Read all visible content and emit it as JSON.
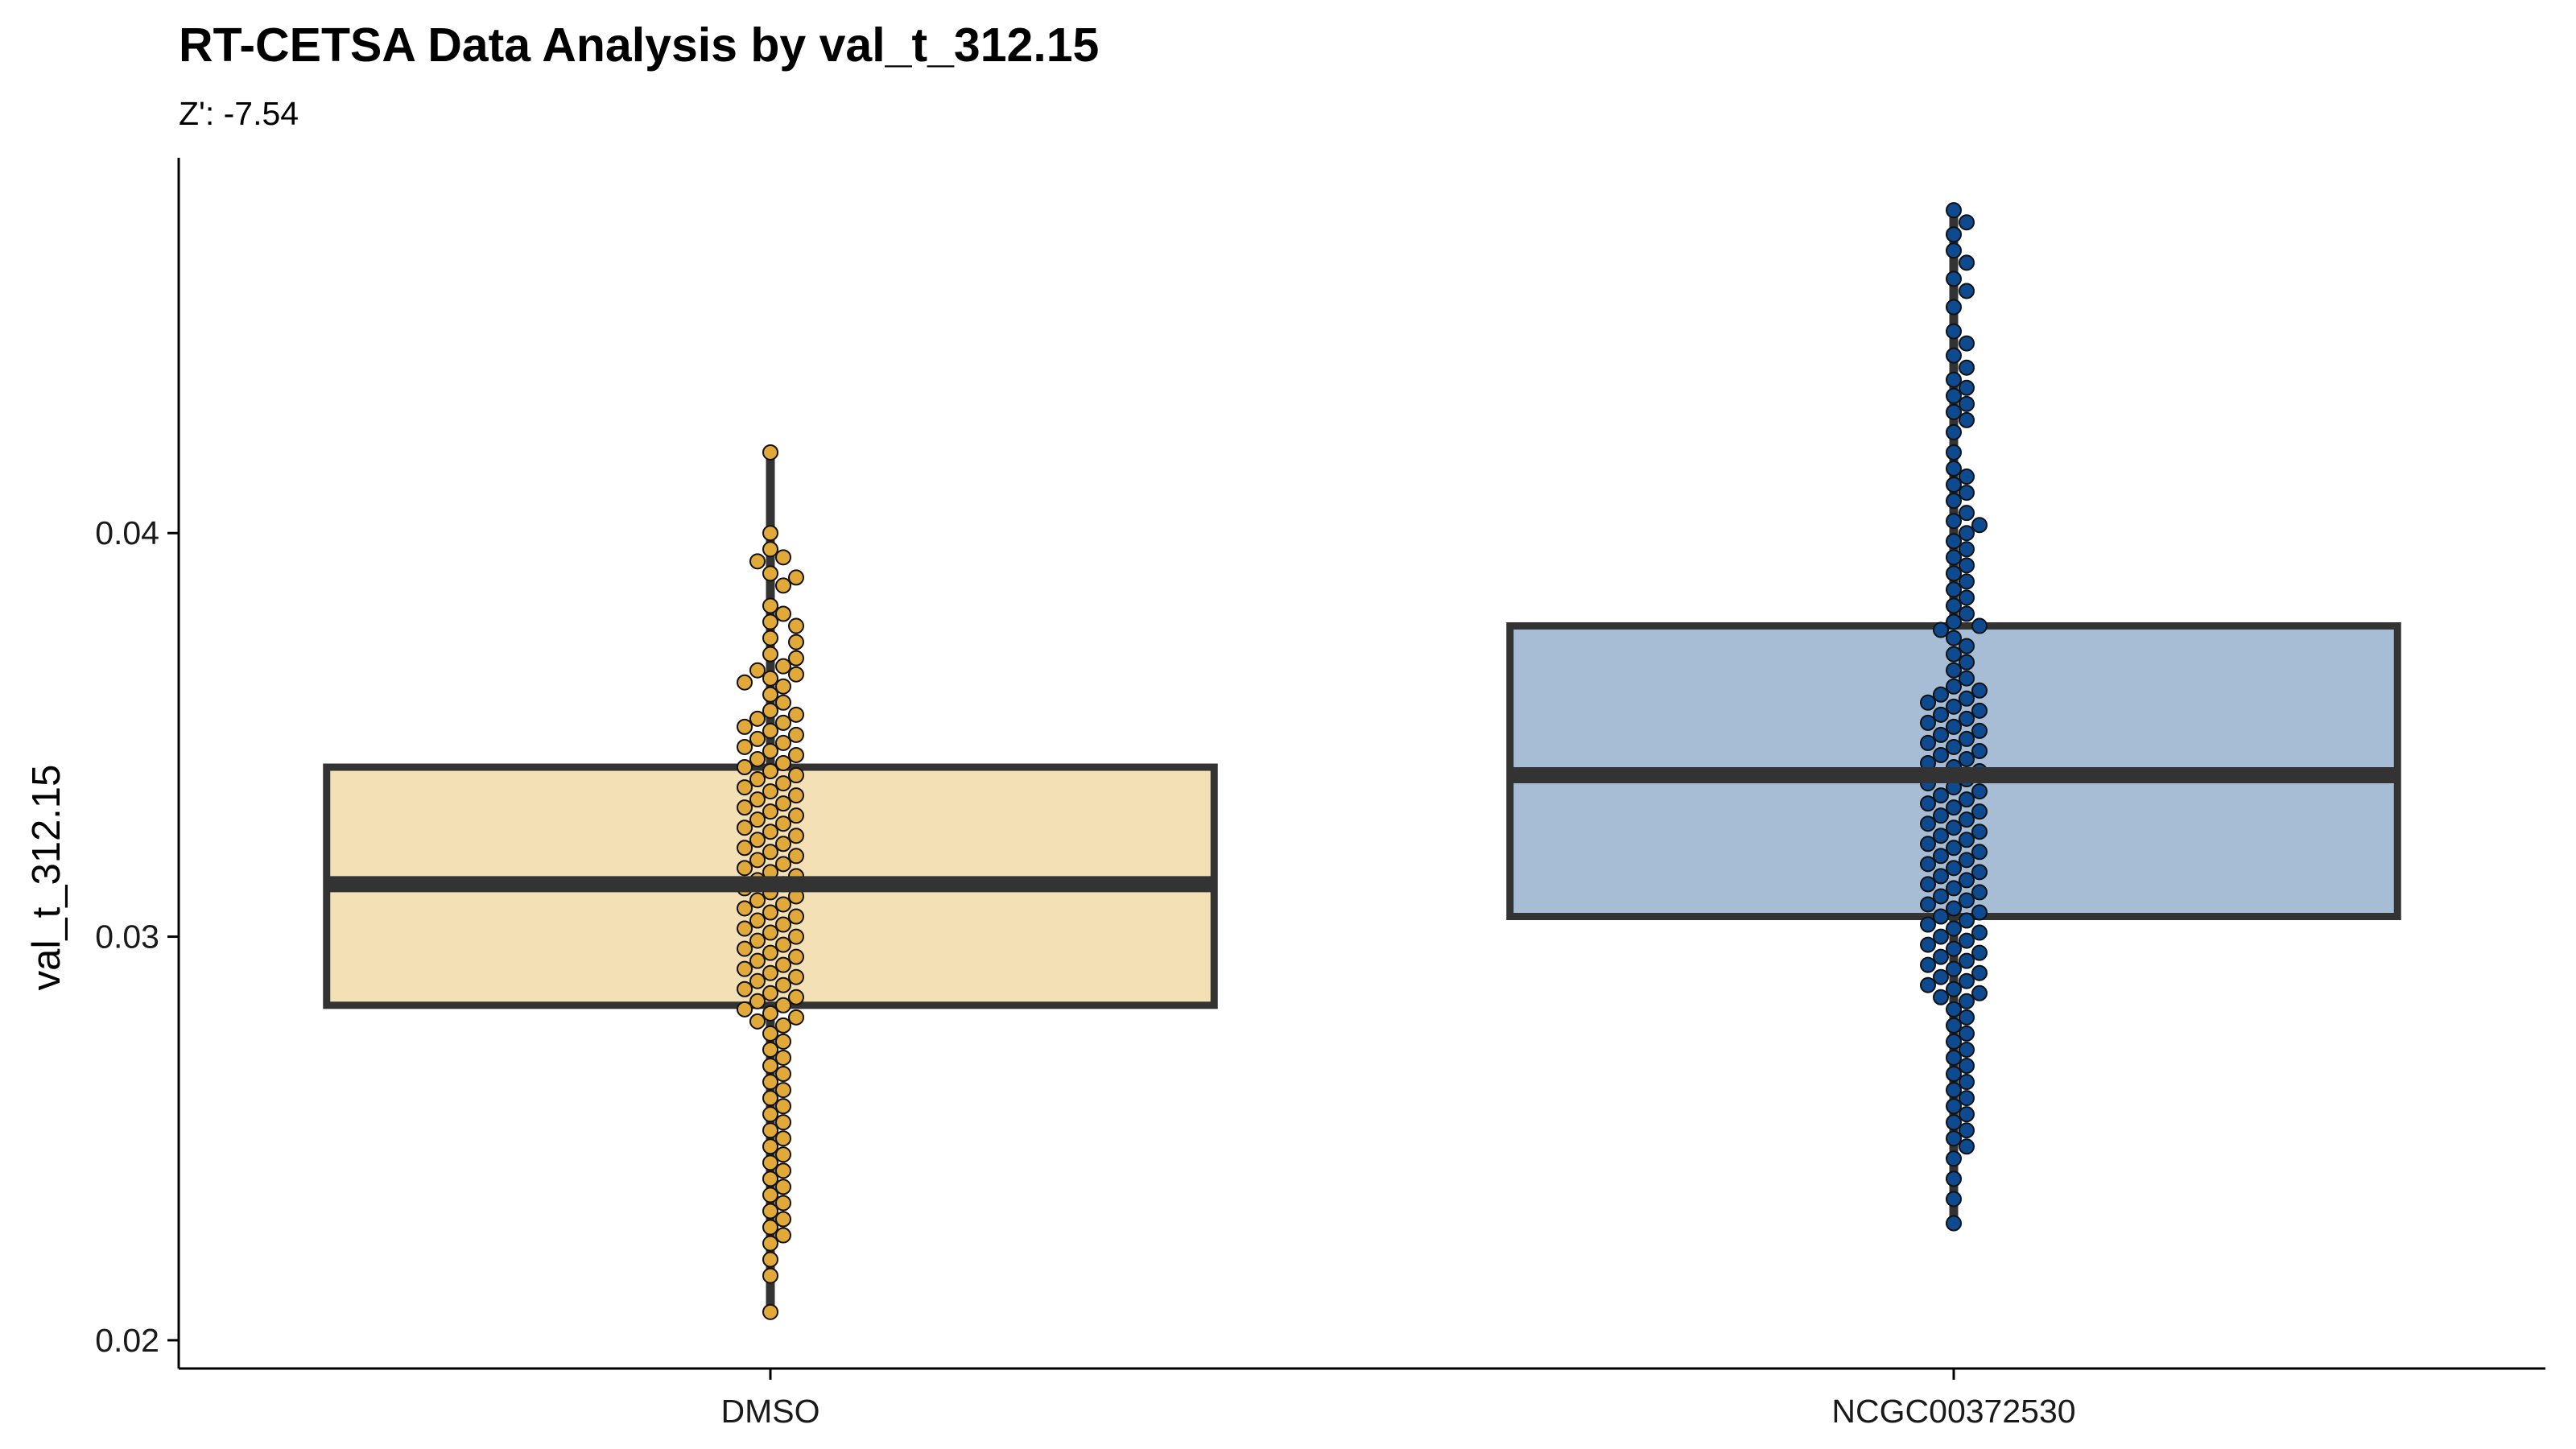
{
  "chart_data": {
    "type": "box",
    "title": "RT-CETSA Data Analysis by val_t_312.15",
    "subtitle": "Z': -7.54",
    "xlabel": "",
    "ylabel": "val_t_312.15",
    "ylim": [
      0.0193,
      0.0493
    ],
    "yticks": [
      0.02,
      0.03,
      0.04
    ],
    "ytick_labels": [
      "0.02",
      "0.03",
      "0.04"
    ],
    "grid": false,
    "categories": [
      "DMSO",
      "NCGC00372530"
    ],
    "series": [
      {
        "name": "DMSO",
        "box": {
          "min": 0.0207,
          "q1": 0.0283,
          "median": 0.0313,
          "q3": 0.0342,
          "max": 0.042
        },
        "fill": "#f3e0b5",
        "point_color": "#e0a93a",
        "points": [
          0.042,
          0.04,
          0.0396,
          0.0394,
          0.0393,
          0.039,
          0.0389,
          0.0387,
          0.0382,
          0.038,
          0.0378,
          0.0377,
          0.0374,
          0.0373,
          0.037,
          0.0369,
          0.0367,
          0.0366,
          0.0365,
          0.0364,
          0.0363,
          0.0362,
          0.036,
          0.0358,
          0.0356,
          0.0355,
          0.0354,
          0.0353,
          0.0352,
          0.0351,
          0.035,
          0.0349,
          0.0348,
          0.0347,
          0.0346,
          0.0345,
          0.0344,
          0.0343,
          0.0342,
          0.0341,
          0.034,
          0.0339,
          0.0338,
          0.0337,
          0.0336,
          0.0335,
          0.0334,
          0.0333,
          0.0332,
          0.0331,
          0.033,
          0.0329,
          0.0328,
          0.0327,
          0.0326,
          0.0325,
          0.0324,
          0.0323,
          0.0322,
          0.0321,
          0.032,
          0.0319,
          0.0318,
          0.0317,
          0.0316,
          0.0315,
          0.0314,
          0.0313,
          0.0312,
          0.0311,
          0.031,
          0.0309,
          0.0308,
          0.0307,
          0.0306,
          0.0305,
          0.0304,
          0.0303,
          0.0302,
          0.0301,
          0.03,
          0.0299,
          0.0298,
          0.0297,
          0.0296,
          0.0295,
          0.0294,
          0.0293,
          0.0292,
          0.0291,
          0.029,
          0.0289,
          0.0288,
          0.0287,
          0.0286,
          0.0285,
          0.0284,
          0.0283,
          0.0282,
          0.0281,
          0.028,
          0.0279,
          0.0278,
          0.0276,
          0.0274,
          0.0272,
          0.027,
          0.0268,
          0.0266,
          0.0264,
          0.0262,
          0.026,
          0.0258,
          0.0256,
          0.0254,
          0.0252,
          0.025,
          0.0248,
          0.0246,
          0.0244,
          0.0242,
          0.024,
          0.0238,
          0.0236,
          0.0234,
          0.0232,
          0.023,
          0.0228,
          0.0226,
          0.0224,
          0.022,
          0.0216,
          0.0207
        ]
      },
      {
        "name": "NCGC00372530",
        "box": {
          "min": 0.0229,
          "q1": 0.0305,
          "median": 0.034,
          "q3": 0.0377,
          "max": 0.048
        },
        "fill": "#a7bdd6",
        "point_color": "#0d4a8f",
        "points": [
          0.048,
          0.0477,
          0.0474,
          0.047,
          0.0467,
          0.0463,
          0.046,
          0.0456,
          0.045,
          0.0447,
          0.0444,
          0.0441,
          0.0438,
          0.0436,
          0.0434,
          0.0432,
          0.043,
          0.0428,
          0.0425,
          0.042,
          0.0416,
          0.0414,
          0.0412,
          0.041,
          0.0408,
          0.0405,
          0.0403,
          0.0402,
          0.04,
          0.0398,
          0.0396,
          0.0394,
          0.0392,
          0.039,
          0.0388,
          0.0386,
          0.0384,
          0.0382,
          0.038,
          0.0378,
          0.0377,
          0.0376,
          0.0374,
          0.0372,
          0.037,
          0.0368,
          0.0366,
          0.0364,
          0.0362,
          0.0361,
          0.036,
          0.0359,
          0.0358,
          0.0357,
          0.0356,
          0.0355,
          0.0354,
          0.0353,
          0.0352,
          0.0351,
          0.035,
          0.0349,
          0.0348,
          0.0347,
          0.0346,
          0.0345,
          0.0344,
          0.0343,
          0.0342,
          0.0341,
          0.034,
          0.0339,
          0.0338,
          0.0337,
          0.0336,
          0.0335,
          0.0334,
          0.0333,
          0.0332,
          0.0331,
          0.033,
          0.0329,
          0.0328,
          0.0327,
          0.0326,
          0.0325,
          0.0324,
          0.0323,
          0.0322,
          0.0321,
          0.032,
          0.0319,
          0.0318,
          0.0317,
          0.0316,
          0.0315,
          0.0314,
          0.0313,
          0.0312,
          0.0311,
          0.031,
          0.0309,
          0.0308,
          0.0307,
          0.0306,
          0.0305,
          0.0304,
          0.0303,
          0.0302,
          0.0301,
          0.03,
          0.0299,
          0.0298,
          0.0297,
          0.0296,
          0.0295,
          0.0294,
          0.0293,
          0.0292,
          0.0291,
          0.029,
          0.0289,
          0.0288,
          0.0287,
          0.0286,
          0.0285,
          0.0284,
          0.0282,
          0.028,
          0.0278,
          0.0276,
          0.0274,
          0.0272,
          0.027,
          0.0268,
          0.0266,
          0.0264,
          0.0262,
          0.026,
          0.0258,
          0.0256,
          0.0254,
          0.0252,
          0.025,
          0.0248,
          0.0245,
          0.024,
          0.0235,
          0.0229
        ]
      }
    ]
  }
}
